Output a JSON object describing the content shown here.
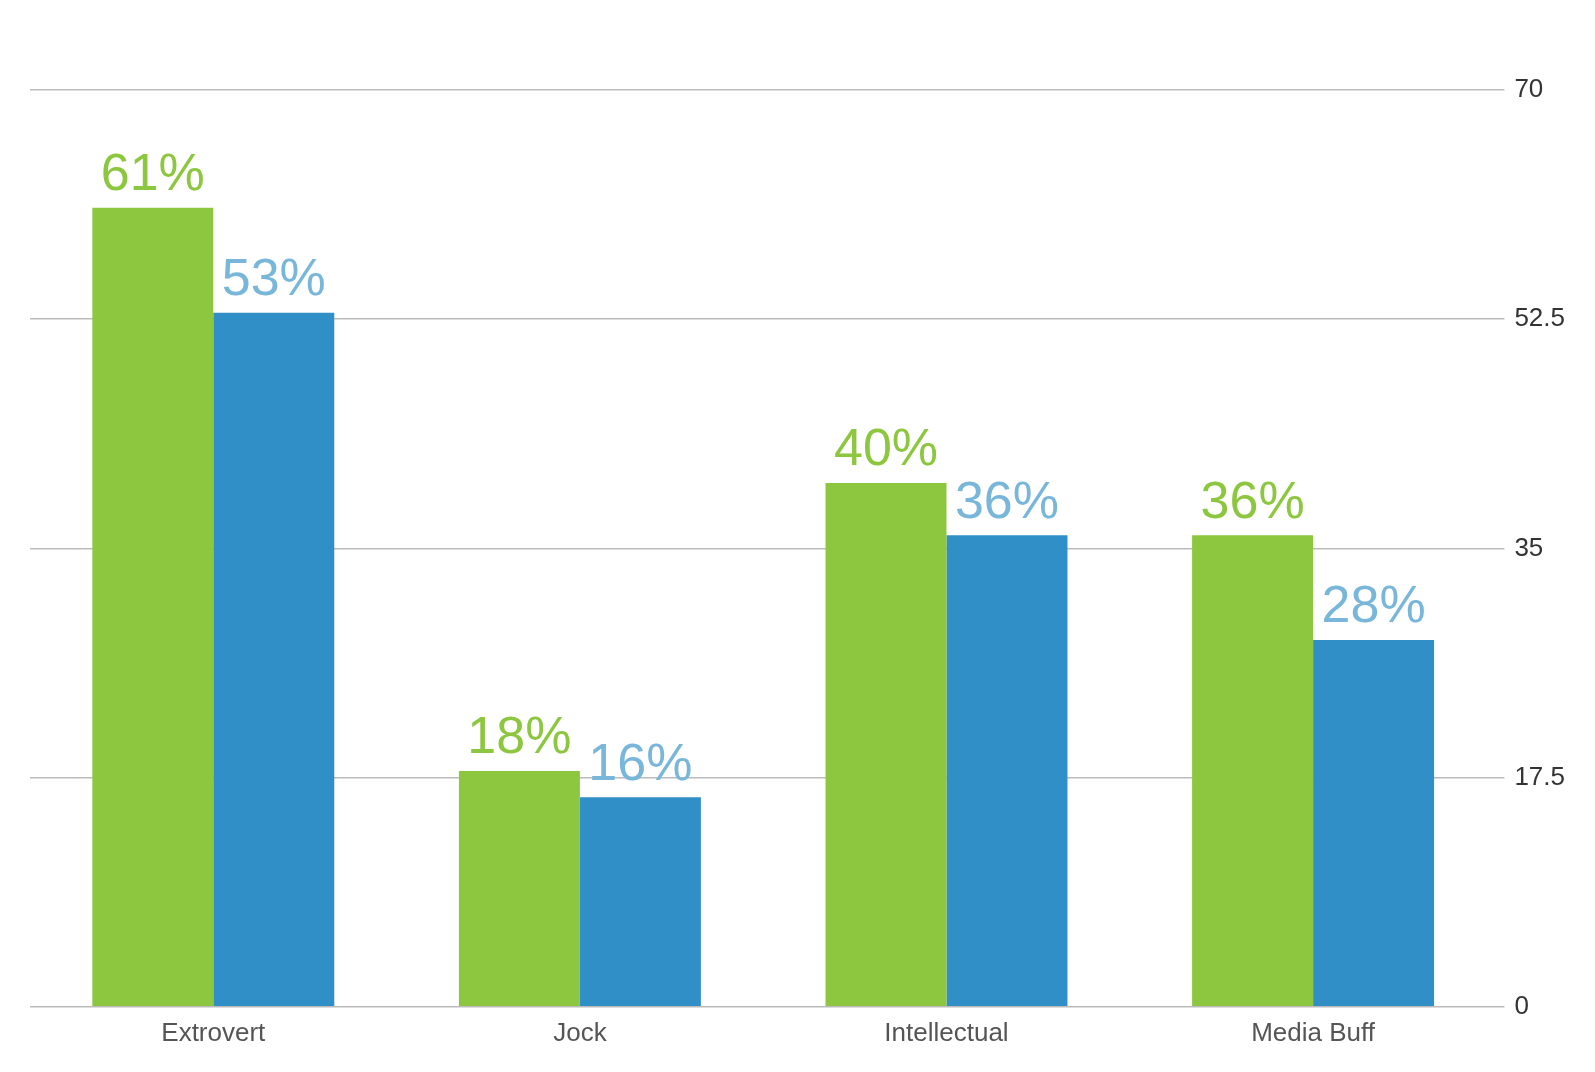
{
  "chart_data": {
    "type": "bar",
    "categories": [
      "Extrovert",
      "Jock",
      "Intellectual",
      "Media Buff"
    ],
    "series": [
      {
        "color": "#8dc63f",
        "values": [
          61,
          18,
          40,
          36
        ],
        "value_labels": [
          "61%",
          "18%",
          "40%",
          "36%"
        ]
      },
      {
        "color": "#2f8fc6",
        "values": [
          53,
          16,
          36,
          28
        ],
        "value_labels": [
          "53%",
          "16%",
          "36%",
          "28%"
        ]
      }
    ],
    "ylim": [
      0,
      70
    ],
    "yticks": [
      0,
      17.5,
      35,
      52.5,
      70
    ],
    "grid": true,
    "data_labels": true
  }
}
